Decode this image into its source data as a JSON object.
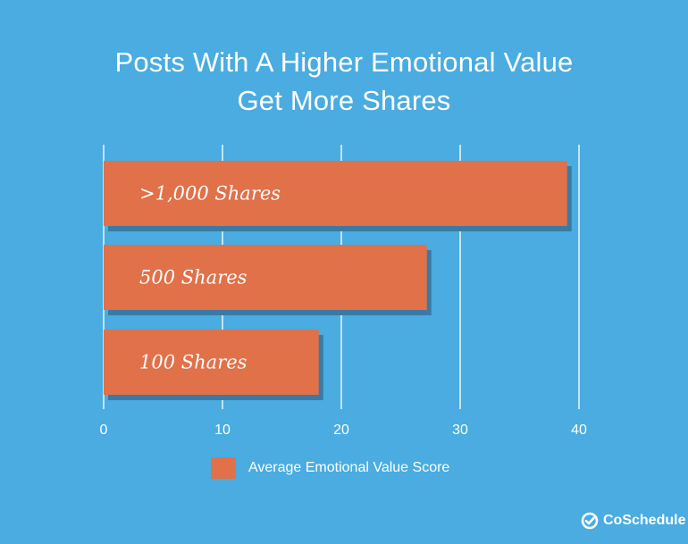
{
  "chart_data": {
    "type": "bar",
    "orientation": "horizontal",
    "title": "Posts With A Higher Emotional Value Get More Shares",
    "title_lines": [
      "Posts With A Higher Emotional Value",
      "Get More Shares"
    ],
    "categories": [
      ">1,000 Shares",
      "500 Shares",
      "100 Shares"
    ],
    "series": [
      {
        "name": "Average Emotional Value Score",
        "values": [
          39,
          27.2,
          18.1
        ]
      }
    ],
    "xlim": [
      0,
      40
    ],
    "x_ticks": [
      "0",
      "10",
      "20",
      "30",
      "40"
    ],
    "grid": "vertical",
    "legend_position": "bottom-center",
    "colors": {
      "background": "#4aace0",
      "bar": "#e07149",
      "bar_shadow": "#3a7aa5",
      "grid": "#ffffff"
    }
  },
  "brand": {
    "name": "CoSchedule",
    "logo_icon": "checkmark-circle-icon"
  }
}
